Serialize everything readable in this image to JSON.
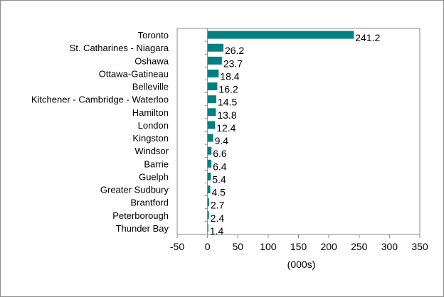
{
  "chart_data": {
    "type": "bar",
    "orientation": "horizontal",
    "categories": [
      "Toronto",
      "St. Catharines - Niagara",
      "Oshawa",
      "Ottawa-Gatineau",
      "Belleville",
      "Kitchener - Cambridge - Waterloo",
      "Hamilton",
      "London",
      "Kingston",
      "Windsor",
      "Barrie",
      "Guelph",
      "Greater Sudbury",
      "Brantford",
      "Peterborough",
      "Thunder Bay"
    ],
    "values": [
      241.2,
      26.2,
      23.7,
      18.4,
      16.2,
      14.5,
      13.8,
      12.4,
      9.4,
      6.6,
      6.4,
      5.4,
      4.5,
      2.7,
      2.4,
      1.4
    ],
    "data_labels": [
      "241.2",
      "26.2",
      "23.7",
      "18.4",
      "16.2",
      "14.5",
      "13.8",
      "12.4",
      "9.4",
      "6.6",
      "6.4",
      "5.4",
      "4.5",
      "2.7",
      "2.4",
      "1.4"
    ],
    "title": "",
    "xlabel": "(000s)",
    "ylabel": "",
    "xlim": [
      -50,
      350
    ],
    "xticks": [
      "-50",
      "0",
      "50",
      "100",
      "150",
      "200",
      "250",
      "300",
      "350"
    ],
    "grid": false,
    "legend": "none",
    "bar_color": "#008080",
    "axis_color": "#888888"
  }
}
